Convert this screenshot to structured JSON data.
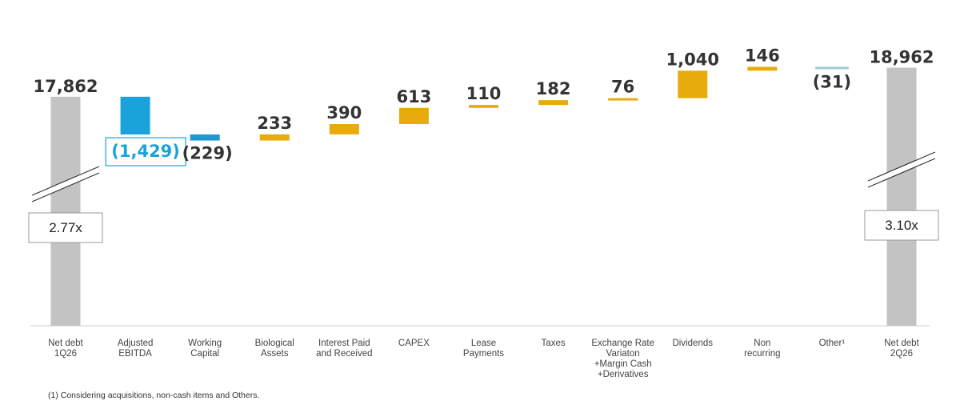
{
  "chart_data": {
    "type": "waterfall",
    "start": {
      "label_lines": [
        "Net debt",
        "1Q26"
      ],
      "value": 17862,
      "display": "17,862",
      "leverage": "2.77x"
    },
    "end": {
      "label_lines": [
        "Net debt",
        "2Q26"
      ],
      "value": 18962,
      "display": "18,962",
      "leverage": "3.10x"
    },
    "steps": [
      {
        "label_lines": [
          "Adjusted",
          "EBITDA"
        ],
        "value": -1429,
        "display": "(1,429)",
        "highlight": true
      },
      {
        "label_lines": [
          "Working",
          "Capital"
        ],
        "value": -229,
        "display": "(229)"
      },
      {
        "label_lines": [
          "Biological",
          "Assets"
        ],
        "value": 233,
        "display": "233"
      },
      {
        "label_lines": [
          "Interest Paid",
          "and Received"
        ],
        "value": 390,
        "display": "390"
      },
      {
        "label_lines": [
          "CAPEX"
        ],
        "value": 613,
        "display": "613"
      },
      {
        "label_lines": [
          "Lease",
          "Payments"
        ],
        "value": 110,
        "display": "110"
      },
      {
        "label_lines": [
          "Taxes"
        ],
        "value": 182,
        "display": "182"
      },
      {
        "label_lines": [
          "Exchange Rate",
          "Variaton",
          "+Margin Cash",
          "+Derivatives"
        ],
        "value": 76,
        "display": "76"
      },
      {
        "label_lines": [
          "Dividends"
        ],
        "value": 1040,
        "display": "1,040"
      },
      {
        "label_lines": [
          "Non",
          "recurring"
        ],
        "value": 146,
        "display": "146"
      },
      {
        "label_lines": [
          "Other¹"
        ],
        "value": -31,
        "display": "(31)"
      }
    ],
    "ylim": [
      16300,
      19100
    ],
    "axis_break": true
  },
  "colors": {
    "total": "#C3C3C3",
    "increase": "#E7AC0B",
    "decrease_primary": "#1AA3DA",
    "decrease_secondary": "#1E96D1",
    "decrease_other": "#9CCDD6"
  },
  "footnote": "(1) Considering acquisitions, non-cash items and Others."
}
